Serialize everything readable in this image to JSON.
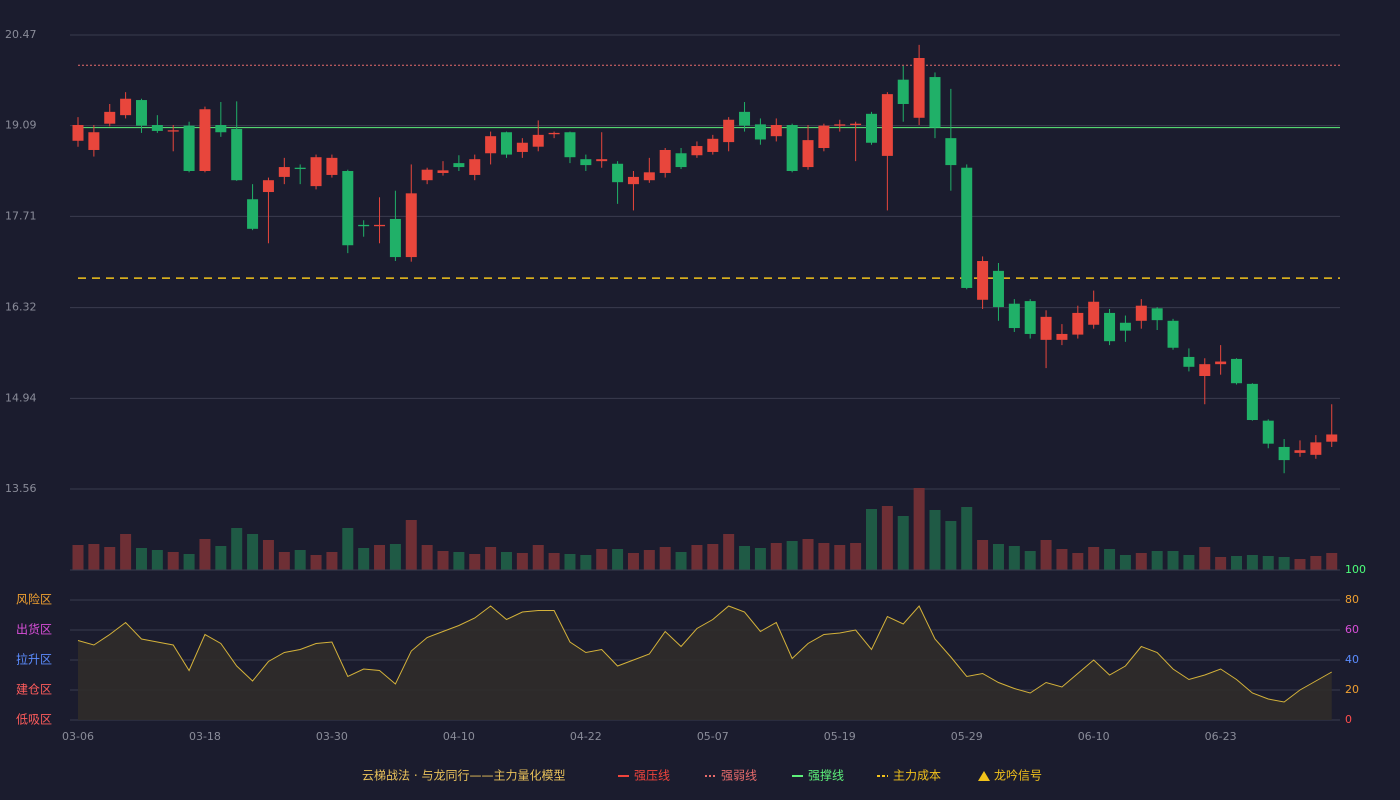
{
  "chart_data": [
    {
      "type": "candlestick",
      "categories": [
        "03-06",
        null,
        null,
        null,
        null,
        null,
        null,
        null,
        "03-18",
        null,
        null,
        null,
        null,
        null,
        null,
        null,
        "03-30",
        null,
        null,
        null,
        null,
        null,
        null,
        null,
        "04-10",
        null,
        null,
        null,
        null,
        null,
        null,
        null,
        "04-22",
        null,
        null,
        null,
        null,
        null,
        null,
        null,
        "05-07",
        null,
        null,
        null,
        null,
        null,
        null,
        null,
        "05-19",
        null,
        null,
        null,
        null,
        null,
        null,
        null,
        "05-29",
        null,
        null,
        null,
        null,
        null,
        null,
        null,
        "06-10",
        null,
        null,
        null,
        null,
        null,
        null,
        null,
        "06-23",
        null,
        null,
        null,
        null,
        null,
        null,
        null
      ],
      "open": [
        18.86,
        18.72,
        19.12,
        19.25,
        19.48,
        19.1,
        19.0,
        19.09,
        18.4,
        19.1,
        19.04,
        17.97,
        18.08,
        18.31,
        18.45,
        18.17,
        18.34,
        18.4,
        17.58,
        17.56,
        17.67,
        17.09,
        18.26,
        18.37,
        18.52,
        18.34,
        18.67,
        18.99,
        18.69,
        18.77,
        18.96,
        18.99,
        18.58,
        18.55,
        18.51,
        18.2,
        18.26,
        18.37,
        18.67,
        18.64,
        18.69,
        18.84,
        19.3,
        19.11,
        18.93,
        19.1,
        18.46,
        18.75,
        19.09,
        19.1,
        19.27,
        18.63,
        19.79,
        19.21,
        19.83,
        18.9,
        18.45,
        16.44,
        16.88,
        16.38,
        16.42,
        15.83,
        15.83,
        15.91,
        16.06,
        16.24,
        16.09,
        16.12,
        16.31,
        16.12,
        15.57,
        15.28,
        15.46,
        15.54,
        15.16,
        14.6,
        14.2,
        14.11,
        14.08,
        14.28
      ],
      "high": [
        19.22,
        19.1,
        19.42,
        19.6,
        19.5,
        19.25,
        19.1,
        19.15,
        19.38,
        19.45,
        19.46,
        18.2,
        18.3,
        18.6,
        18.5,
        18.65,
        18.65,
        18.42,
        17.65,
        18.0,
        18.1,
        18.5,
        18.45,
        18.55,
        18.64,
        18.65,
        19.0,
        19.0,
        18.9,
        19.17,
        19.0,
        19.0,
        18.65,
        18.99,
        18.55,
        18.4,
        18.6,
        18.75,
        18.75,
        18.85,
        18.95,
        19.22,
        19.45,
        19.2,
        19.2,
        19.12,
        19.1,
        19.12,
        19.18,
        19.15,
        19.3,
        19.6,
        20.0,
        20.32,
        19.9,
        19.65,
        18.5,
        17.1,
        17.0,
        16.45,
        16.45,
        16.28,
        16.07,
        16.35,
        16.58,
        16.3,
        16.2,
        16.45,
        16.33,
        16.15,
        15.7,
        15.55,
        15.75,
        15.55,
        15.17,
        14.62,
        14.32,
        14.3,
        14.38,
        14.85
      ],
      "low": [
        18.77,
        18.62,
        19.08,
        19.2,
        18.98,
        18.98,
        18.7,
        18.38,
        18.38,
        18.92,
        18.25,
        17.5,
        17.3,
        18.2,
        18.2,
        18.12,
        18.3,
        17.15,
        17.4,
        17.3,
        17.03,
        17.02,
        18.2,
        18.33,
        18.4,
        18.26,
        18.5,
        18.6,
        18.6,
        18.7,
        18.9,
        18.52,
        18.4,
        18.45,
        17.9,
        17.8,
        18.22,
        18.3,
        18.43,
        18.6,
        18.65,
        18.7,
        19.0,
        18.8,
        18.85,
        18.38,
        18.42,
        18.7,
        19.0,
        18.55,
        18.8,
        17.8,
        19.15,
        19.1,
        18.9,
        18.1,
        16.6,
        16.3,
        16.12,
        15.95,
        15.85,
        15.4,
        15.75,
        15.85,
        16.0,
        15.75,
        15.8,
        16.0,
        15.98,
        15.68,
        15.35,
        14.85,
        15.3,
        15.15,
        14.6,
        14.18,
        13.8,
        14.05,
        14.02,
        14.2
      ],
      "close": [
        19.1,
        18.99,
        19.3,
        19.5,
        19.09,
        19.01,
        19.02,
        18.4,
        19.34,
        18.99,
        18.26,
        17.52,
        18.26,
        18.46,
        18.43,
        18.61,
        18.6,
        17.27,
        17.56,
        17.58,
        17.09,
        18.06,
        18.42,
        18.41,
        18.46,
        18.58,
        18.93,
        18.65,
        18.83,
        18.95,
        18.98,
        18.61,
        18.49,
        18.58,
        18.23,
        18.31,
        18.38,
        18.72,
        18.46,
        18.78,
        18.89,
        19.18,
        19.09,
        18.88,
        19.1,
        18.4,
        18.87,
        19.09,
        19.11,
        19.12,
        18.83,
        19.57,
        19.42,
        20.12,
        19.06,
        18.49,
        16.62,
        17.03,
        16.33,
        16.01,
        15.92,
        16.18,
        15.92,
        16.24,
        16.41,
        15.81,
        15.97,
        16.35,
        16.13,
        15.71,
        15.42,
        15.46,
        15.5,
        15.17,
        14.61,
        14.25,
        14.0,
        14.15,
        14.27,
        14.39
      ],
      "up_color": "#e8463c",
      "down_color": "#20b068",
      "ylim": [
        13.56,
        20.47
      ],
      "yticks": [
        13.56,
        14.94,
        16.32,
        17.71,
        19.09,
        20.47
      ],
      "grid": true,
      "lines": [
        {
          "name": "强压线",
          "color": "#f0443c",
          "style": "solid",
          "value": null
        },
        {
          "name": "强弱线",
          "color": "#e86b6b",
          "style": "dotted",
          "value": 20.01
        },
        {
          "name": "强撑线",
          "color": "#5df07a",
          "style": "solid",
          "value": 19.06
        },
        {
          "name": "主力成本",
          "color": "#f2c21b",
          "style": "dashed",
          "value": 16.77
        }
      ],
      "legend_title": "云梯战法 · 与龙同行——主力量化模型",
      "signal_label": "龙吟信号",
      "signal_color": "#f2c21b"
    },
    {
      "type": "volume",
      "values": [
        25,
        26,
        23,
        36,
        22,
        20,
        18,
        16,
        31,
        24,
        42,
        36,
        30,
        18,
        20,
        15,
        18,
        42,
        22,
        25,
        26,
        50,
        25,
        19,
        18,
        16,
        23,
        18,
        17,
        25,
        17,
        16,
        15,
        21,
        21,
        17,
        20,
        23,
        18,
        25,
        26,
        36,
        24,
        22,
        27,
        29,
        31,
        27,
        25,
        27,
        61,
        64,
        54,
        82,
        60,
        49,
        63,
        30,
        26,
        24,
        19,
        30,
        21,
        17,
        23,
        21,
        15,
        17,
        19,
        19,
        15,
        23,
        13,
        14,
        15,
        14,
        13,
        11,
        14,
        17
      ],
      "up_color": "#6e2f35",
      "down_color": "#1f5a45"
    },
    {
      "type": "area",
      "values": [
        53,
        50,
        57,
        65,
        54,
        52,
        50,
        33,
        57,
        51,
        36,
        26,
        39,
        45,
        47,
        51,
        52,
        29,
        34,
        33,
        24,
        46,
        55,
        59,
        63,
        68,
        76,
        67,
        72,
        73,
        73,
        52,
        45,
        47,
        36,
        40,
        44,
        59,
        49,
        61,
        67,
        76,
        72,
        59,
        65,
        41,
        51,
        57,
        58,
        60,
        47,
        69,
        64,
        76,
        54,
        42,
        29,
        31,
        25,
        21,
        18,
        25,
        22,
        31,
        40,
        30,
        36,
        49,
        45,
        34,
        27,
        30,
        34,
        27,
        18,
        14,
        12,
        20,
        26,
        32
      ],
      "color": "#d4b23a",
      "fill": "#302c2a",
      "ylim": [
        0,
        100
      ],
      "yticks": [
        0,
        20,
        40,
        60,
        80,
        100
      ],
      "ytick_colors": [
        "#ff4d4d",
        "#f0a030",
        "#5b8cff",
        "#d94fd9",
        "#f0a030",
        "#4cff7a"
      ],
      "zones": [
        {
          "value": 80,
          "label": "风险区",
          "color": "#f0a030"
        },
        {
          "value": 60,
          "label": "出货区",
          "color": "#d94fd9"
        },
        {
          "value": 40,
          "label": "拉升区",
          "color": "#5b8cff"
        },
        {
          "value": 20,
          "label": "建仓区",
          "color": "#ff5c5c"
        },
        {
          "value": 0,
          "label": "低吸区",
          "color": "#ff5c5c"
        }
      ]
    }
  ]
}
